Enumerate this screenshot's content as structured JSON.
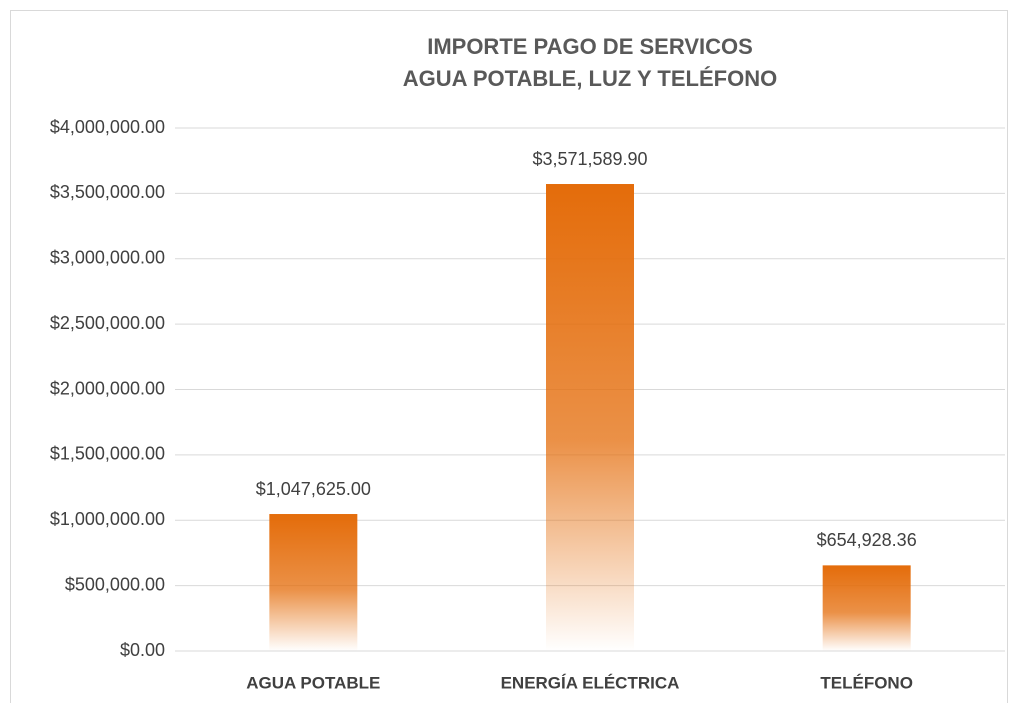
{
  "chart_data": {
    "type": "bar",
    "title": [
      "IMPORTE PAGO DE SERVICOS",
      "AGUA POTABLE, LUZ Y TELÉFONO"
    ],
    "categories": [
      "AGUA POTABLE",
      "ENERGÍA ELÉCTRICA",
      "TELÉFONO"
    ],
    "values": [
      1047625.0,
      3571589.9,
      654928.36
    ],
    "value_labels": [
      "$1,047,625.00",
      "$3,571,589.90",
      "$654,928.36"
    ],
    "color": "#e46c0a",
    "ylim": [
      0,
      4000000
    ],
    "yticks": [
      {
        "value": 0,
        "label": "$0.00"
      },
      {
        "value": 500000,
        "label": "$500,000.00"
      },
      {
        "value": 1000000,
        "label": "$1,000,000.00"
      },
      {
        "value": 1500000,
        "label": "$1,500,000.00"
      },
      {
        "value": 2000000,
        "label": "$2,000,000.00"
      },
      {
        "value": 2500000,
        "label": "$2,500,000.00"
      },
      {
        "value": 3000000,
        "label": "$3,000,000.00"
      },
      {
        "value": 3500000,
        "label": "$3,500,000.00"
      },
      {
        "value": 4000000,
        "label": "$4,000,000.00"
      }
    ],
    "grid": true
  }
}
